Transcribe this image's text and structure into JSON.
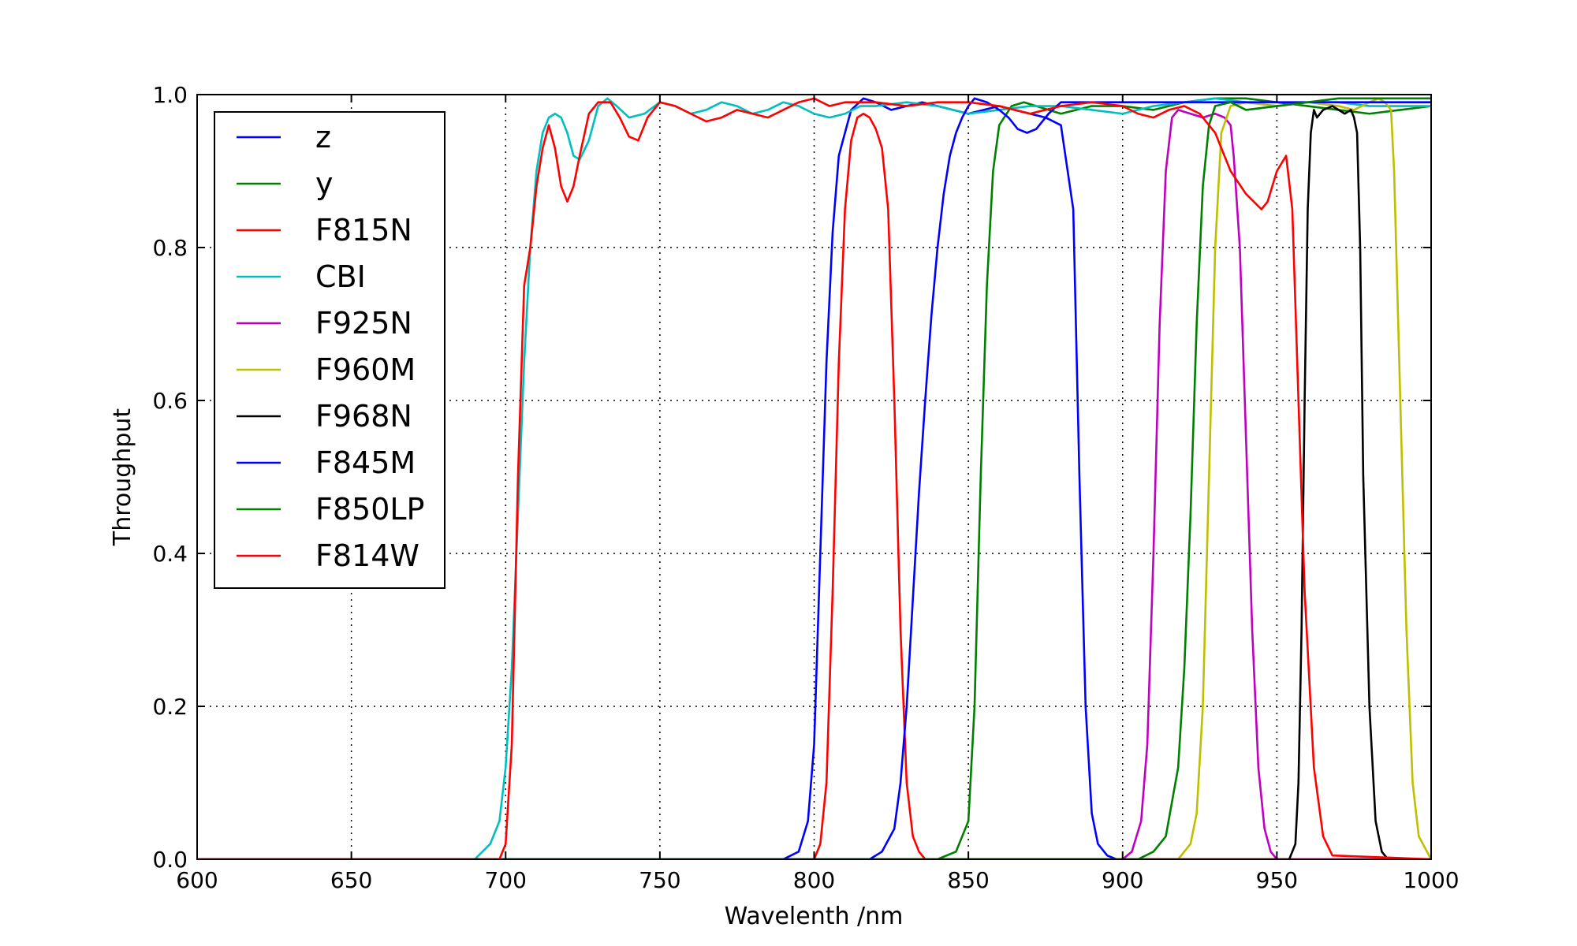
{
  "chart_data": {
    "type": "line",
    "title": "",
    "xlabel": "Wavelenth /nm",
    "ylabel": "Throughput",
    "xlim": [
      600,
      1000
    ],
    "ylim": [
      0.0,
      1.0
    ],
    "xticks": [
      600,
      650,
      700,
      750,
      800,
      850,
      900,
      950,
      1000
    ],
    "yticks": [
      0.0,
      0.2,
      0.4,
      0.6,
      0.8,
      1.0
    ],
    "xtick_labels": [
      "600",
      "650",
      "700",
      "750",
      "800",
      "850",
      "900",
      "950",
      "1000"
    ],
    "ytick_labels": [
      "0.0",
      "0.2",
      "0.4",
      "0.6",
      "0.8",
      "1.0"
    ],
    "grid": true,
    "legend_position": "upper-left",
    "series": [
      {
        "name": "z",
        "color": "#0000ff",
        "x": [
          600,
          790,
          795,
          798,
          800,
          802,
          804,
          806,
          808,
          812,
          816,
          820,
          825,
          830,
          835,
          840,
          845,
          850,
          855,
          860,
          870,
          875,
          880,
          884,
          886,
          888,
          890,
          892,
          895,
          898,
          900
        ],
        "y": [
          0,
          0,
          0.01,
          0.05,
          0.15,
          0.4,
          0.65,
          0.82,
          0.92,
          0.98,
          0.995,
          0.99,
          0.98,
          0.985,
          0.99,
          0.985,
          0.98,
          0.975,
          0.98,
          0.985,
          0.975,
          0.97,
          0.96,
          0.85,
          0.5,
          0.2,
          0.06,
          0.02,
          0.005,
          0,
          0
        ]
      },
      {
        "name": "y",
        "color": "#008000",
        "x": [
          600,
          840,
          846,
          850,
          852,
          854,
          856,
          858,
          860,
          864,
          868,
          872,
          880,
          890,
          900,
          910,
          920,
          930,
          940,
          950,
          960,
          970,
          980,
          990,
          1000
        ],
        "y": [
          0,
          0,
          0.01,
          0.05,
          0.2,
          0.5,
          0.75,
          0.9,
          0.96,
          0.985,
          0.99,
          0.985,
          0.975,
          0.985,
          0.985,
          0.98,
          0.99,
          0.995,
          0.995,
          0.99,
          0.985,
          0.98,
          0.975,
          0.98,
          0.985
        ]
      },
      {
        "name": "F815N",
        "color": "#ff0000",
        "x": [
          600,
          800,
          802,
          804,
          806,
          808,
          810,
          812,
          814,
          816,
          818,
          820,
          822,
          824,
          826,
          828,
          830,
          832,
          834,
          836,
          1000
        ],
        "y": [
          0,
          0,
          0.02,
          0.1,
          0.35,
          0.65,
          0.85,
          0.94,
          0.97,
          0.975,
          0.97,
          0.955,
          0.93,
          0.85,
          0.6,
          0.3,
          0.1,
          0.03,
          0.01,
          0,
          0
        ]
      },
      {
        "name": "CBI",
        "color": "#00bfbf",
        "x": [
          600,
          690,
          695,
          698,
          700,
          702,
          704,
          706,
          708,
          710,
          712,
          714,
          716,
          718,
          720,
          722,
          724,
          727,
          730,
          733,
          736,
          740,
          745,
          750,
          755,
          760,
          765,
          770,
          775,
          780,
          785,
          790,
          795,
          800,
          805,
          810,
          815,
          820,
          830,
          840,
          850,
          860,
          870,
          880,
          890,
          900,
          910,
          920,
          930,
          940,
          950,
          960,
          970,
          980,
          990,
          1000
        ],
        "y": [
          0,
          0,
          0.02,
          0.05,
          0.12,
          0.25,
          0.45,
          0.65,
          0.8,
          0.9,
          0.95,
          0.97,
          0.975,
          0.97,
          0.95,
          0.92,
          0.915,
          0.94,
          0.985,
          0.995,
          0.985,
          0.97,
          0.975,
          0.99,
          0.985,
          0.975,
          0.98,
          0.99,
          0.985,
          0.975,
          0.98,
          0.99,
          0.985,
          0.975,
          0.97,
          0.975,
          0.985,
          0.985,
          0.99,
          0.985,
          0.975,
          0.98,
          0.985,
          0.985,
          0.98,
          0.975,
          0.985,
          0.99,
          0.995,
          0.99,
          0.985,
          0.99,
          0.99,
          0.985,
          0.985,
          0.985
        ]
      },
      {
        "name": "F925N",
        "color": "#bf00bf",
        "x": [
          600,
          900,
          903,
          906,
          908,
          910,
          912,
          914,
          916,
          918,
          922,
          926,
          930,
          933,
          935,
          936,
          938,
          940,
          942,
          944,
          946,
          948,
          950,
          1000
        ],
        "y": [
          0,
          0,
          0.01,
          0.05,
          0.15,
          0.4,
          0.7,
          0.9,
          0.97,
          0.98,
          0.975,
          0.97,
          0.975,
          0.97,
          0.96,
          0.92,
          0.8,
          0.55,
          0.3,
          0.12,
          0.04,
          0.01,
          0,
          0
        ]
      },
      {
        "name": "F960M",
        "color": "#bfbf00",
        "x": [
          600,
          918,
          922,
          924,
          926,
          928,
          930,
          932,
          935,
          940,
          950,
          960,
          970,
          975,
          980,
          983,
          985,
          987,
          988,
          990,
          992,
          994,
          996,
          1000
        ],
        "y": [
          0,
          0,
          0.02,
          0.06,
          0.2,
          0.5,
          0.8,
          0.95,
          0.985,
          0.99,
          0.985,
          0.99,
          0.985,
          0.98,
          0.99,
          0.995,
          0.99,
          0.98,
          0.9,
          0.6,
          0.3,
          0.1,
          0.03,
          0
        ]
      },
      {
        "name": "F968N",
        "color": "#000000",
        "x": [
          600,
          954,
          956,
          957,
          958,
          959,
          960,
          961,
          962,
          963,
          965,
          968,
          970,
          972,
          974,
          975,
          976,
          977,
          978,
          980,
          982,
          984,
          986,
          1000
        ],
        "y": [
          0,
          0,
          0.02,
          0.1,
          0.3,
          0.6,
          0.85,
          0.95,
          0.98,
          0.97,
          0.98,
          0.985,
          0.98,
          0.975,
          0.98,
          0.97,
          0.95,
          0.8,
          0.5,
          0.2,
          0.05,
          0.01,
          0,
          0
        ]
      },
      {
        "name": "F845M",
        "color": "#0000ff",
        "x": [
          600,
          818,
          822,
          826,
          828,
          830,
          832,
          834,
          836,
          838,
          840,
          842,
          844,
          846,
          848,
          850,
          852,
          856,
          860,
          863,
          866,
          869,
          872,
          876,
          880,
          1000
        ],
        "y": [
          0,
          0,
          0.01,
          0.04,
          0.1,
          0.2,
          0.34,
          0.48,
          0.6,
          0.71,
          0.8,
          0.87,
          0.92,
          0.95,
          0.97,
          0.985,
          0.995,
          0.99,
          0.98,
          0.97,
          0.955,
          0.95,
          0.955,
          0.975,
          0.99,
          0.99
        ]
      },
      {
        "name": "F850LP",
        "color": "#008000",
        "x": [
          600,
          905,
          910,
          914,
          918,
          920,
          922,
          924,
          926,
          928,
          930,
          935,
          940,
          950,
          960,
          970,
          980,
          990,
          1000
        ],
        "y": [
          0,
          0,
          0.01,
          0.03,
          0.12,
          0.25,
          0.45,
          0.7,
          0.88,
          0.96,
          0.985,
          0.99,
          0.98,
          0.985,
          0.99,
          0.995,
          0.995,
          0.995,
          0.995
        ]
      },
      {
        "name": "F814W",
        "color": "#ff0000",
        "x": [
          600,
          698,
          700,
          702,
          704,
          706,
          708,
          710,
          712,
          714,
          716,
          718,
          720,
          722,
          724,
          727,
          730,
          734,
          737,
          740,
          743,
          746,
          750,
          755,
          760,
          765,
          770,
          775,
          780,
          785,
          790,
          795,
          800,
          805,
          810,
          820,
          830,
          840,
          850,
          860,
          870,
          880,
          890,
          900,
          905,
          910,
          915,
          920,
          925,
          930,
          935,
          940,
          945,
          947,
          950,
          953,
          955,
          957,
          959,
          962,
          965,
          968,
          1000
        ],
        "y": [
          0,
          0,
          0.02,
          0.15,
          0.5,
          0.75,
          0.8,
          0.88,
          0.93,
          0.96,
          0.93,
          0.88,
          0.86,
          0.88,
          0.92,
          0.975,
          0.99,
          0.99,
          0.97,
          0.945,
          0.94,
          0.97,
          0.99,
          0.985,
          0.975,
          0.965,
          0.97,
          0.98,
          0.975,
          0.97,
          0.98,
          0.99,
          0.995,
          0.985,
          0.99,
          0.99,
          0.985,
          0.99,
          0.99,
          0.985,
          0.975,
          0.985,
          0.99,
          0.985,
          0.975,
          0.97,
          0.98,
          0.985,
          0.975,
          0.95,
          0.9,
          0.87,
          0.85,
          0.86,
          0.9,
          0.92,
          0.85,
          0.6,
          0.35,
          0.12,
          0.03,
          0.005,
          0
        ]
      }
    ]
  }
}
